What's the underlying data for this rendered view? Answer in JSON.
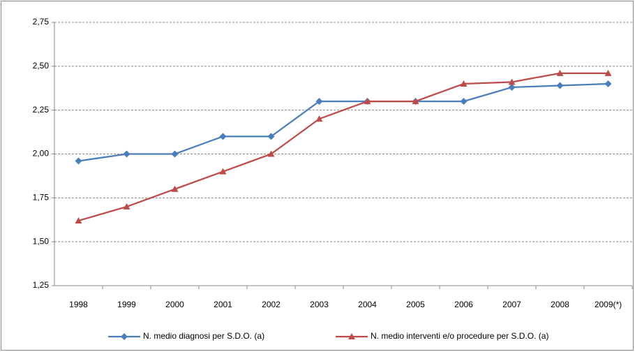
{
  "chart_data": {
    "type": "line",
    "categories": [
      "1998",
      "1999",
      "2000",
      "2001",
      "2002",
      "2003",
      "2004",
      "2005",
      "2006",
      "2007",
      "2008",
      "2009(*)"
    ],
    "series": [
      {
        "name": "N. medio diagnosi per S.D.O. (a)",
        "color": "#4a7ebb",
        "marker": "diamond",
        "values": [
          1.96,
          2.0,
          2.0,
          2.1,
          2.1,
          2.3,
          2.3,
          2.3,
          2.3,
          2.38,
          2.39,
          2.4
        ]
      },
      {
        "name": "N. medio interventi e/o procedure per S.D.O. (a)",
        "color": "#be4b48",
        "marker": "triangle",
        "values": [
          1.62,
          1.7,
          1.8,
          1.9,
          2.0,
          2.2,
          2.3,
          2.3,
          2.4,
          2.41,
          2.46,
          2.46
        ]
      }
    ],
    "ylim": [
      1.25,
      2.75
    ],
    "yticks": [
      {
        "value": 1.25,
        "label": "1,25"
      },
      {
        "value": 1.5,
        "label": "1,50"
      },
      {
        "value": 1.75,
        "label": "1,75"
      },
      {
        "value": 2,
        "label": "2,00"
      },
      {
        "value": 2.25,
        "label": "2,25"
      },
      {
        "value": 2.5,
        "label": "2,50"
      },
      {
        "value": 2.75,
        "label": "2,75"
      }
    ],
    "grid": true,
    "legend": "bottom"
  }
}
